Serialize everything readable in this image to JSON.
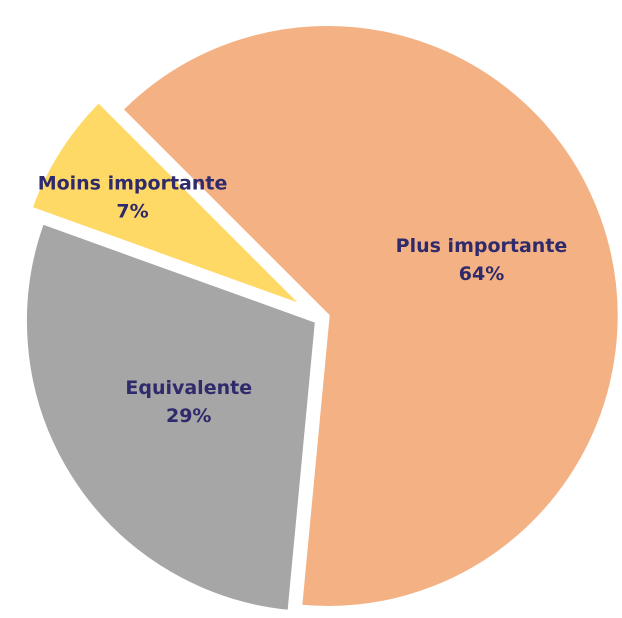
{
  "chart_data": {
    "type": "pie",
    "categories": [
      "Plus importante",
      "Equivalente",
      "Moins importante"
    ],
    "values": [
      64,
      29,
      7
    ],
    "value_labels": [
      "64%",
      "29%",
      "7%"
    ],
    "colors": [
      "#f4b183",
      "#a6a6a6",
      "#ffd966"
    ]
  }
}
